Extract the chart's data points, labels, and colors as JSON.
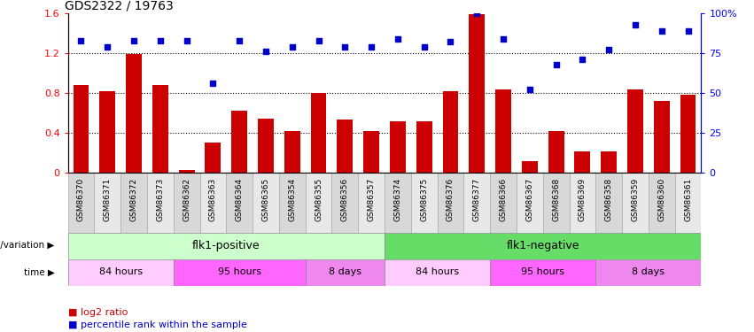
{
  "title": "GDS2322 / 19763",
  "samples": [
    "GSM86370",
    "GSM86371",
    "GSM86372",
    "GSM86373",
    "GSM86362",
    "GSM86363",
    "GSM86364",
    "GSM86365",
    "GSM86354",
    "GSM86355",
    "GSM86356",
    "GSM86357",
    "GSM86374",
    "GSM86375",
    "GSM86376",
    "GSM86377",
    "GSM86366",
    "GSM86367",
    "GSM86368",
    "GSM86369",
    "GSM86358",
    "GSM86359",
    "GSM86360",
    "GSM86361"
  ],
  "log2_ratio": [
    0.88,
    0.82,
    1.19,
    0.88,
    0.03,
    0.3,
    0.62,
    0.54,
    0.42,
    0.8,
    0.53,
    0.42,
    0.52,
    0.52,
    0.82,
    1.59,
    0.84,
    0.12,
    0.42,
    0.21,
    0.21,
    0.84,
    0.72,
    0.78
  ],
  "percentile": [
    83,
    79,
    83,
    83,
    83,
    56,
    83,
    76,
    79,
    83,
    79,
    79,
    84,
    79,
    82,
    100,
    84,
    52,
    68,
    71,
    77,
    93,
    89,
    89
  ],
  "bar_color": "#cc0000",
  "dot_color": "#0000cc",
  "ylim_left": [
    0,
    1.6
  ],
  "ylim_right": [
    0,
    100
  ],
  "yticks_left": [
    0,
    0.4,
    0.8,
    1.2,
    1.6
  ],
  "yticks_right": [
    0,
    25,
    50,
    75,
    100
  ],
  "ytick_labels_right": [
    "0",
    "25",
    "50",
    "75",
    "100%"
  ],
  "hlines": [
    0.4,
    0.8,
    1.2
  ],
  "genotype_groups": [
    {
      "label": "flk1-positive",
      "start": 0,
      "end": 12,
      "color": "#ccffcc"
    },
    {
      "label": "flk1-negative",
      "start": 12,
      "end": 24,
      "color": "#66dd66"
    }
  ],
  "time_groups": [
    {
      "label": "84 hours",
      "start": 0,
      "end": 4,
      "color": "#ffccff"
    },
    {
      "label": "95 hours",
      "start": 4,
      "end": 9,
      "color": "#ff66ff"
    },
    {
      "label": "8 days",
      "start": 9,
      "end": 12,
      "color": "#ee88ee"
    },
    {
      "label": "84 hours",
      "start": 12,
      "end": 16,
      "color": "#ffccff"
    },
    {
      "label": "95 hours",
      "start": 16,
      "end": 20,
      "color": "#ff66ff"
    },
    {
      "label": "8 days",
      "start": 20,
      "end": 24,
      "color": "#ee88ee"
    }
  ],
  "genotype_label": "genotype/variation",
  "time_label": "time",
  "bar_width": 0.6,
  "legend_bar_label": "log2 ratio",
  "legend_dot_label": "percentile rank within the sample"
}
